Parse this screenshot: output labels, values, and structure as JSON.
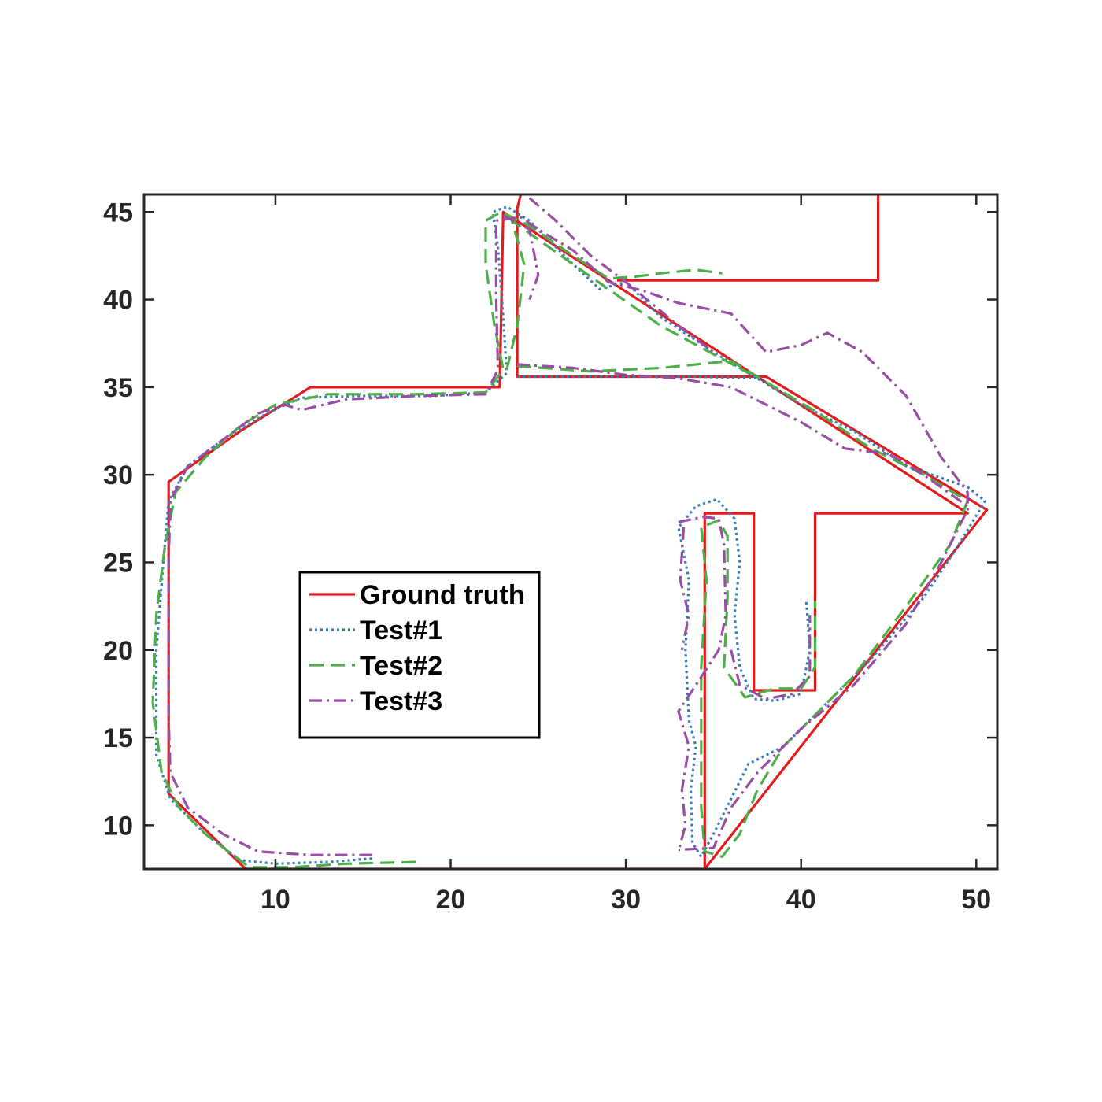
{
  "chart_data": {
    "type": "line",
    "title": "",
    "xlabel": "",
    "ylabel": "",
    "xlim": [
      2.5,
      51.2
    ],
    "ylim": [
      7.5,
      46
    ],
    "xticks": [
      10,
      20,
      30,
      40,
      50
    ],
    "yticks": [
      10,
      15,
      20,
      25,
      30,
      35,
      40,
      45
    ],
    "grid": false,
    "legend_position": "center-left",
    "series": [
      {
        "name": "Ground truth",
        "color": "#e41a1c",
        "style": "solid",
        "segments": [
          [
            [
              24,
              46
            ],
            [
              23.8,
              45.2
            ],
            [
              23.8,
              35.6
            ],
            [
              38,
              35.6
            ],
            [
              50.6,
              28
            ],
            [
              34.5,
              7.5
            ],
            [
              34.5,
              27.8
            ],
            [
              37.3,
              27.8
            ],
            [
              37.3,
              17.7
            ],
            [
              40.8,
              17.7
            ],
            [
              40.8,
              27.8
            ],
            [
              49.5,
              27.8
            ],
            [
              23,
              45
            ],
            [
              22.8,
              35
            ],
            [
              12,
              35
            ],
            [
              8,
              32.5
            ],
            [
              3.9,
              29.6
            ],
            [
              3.9,
              11.8
            ],
            [
              8.3,
              7.5
            ],
            [
              34.3,
              7.5
            ]
          ],
          [
            [
              29.5,
              41.1
            ],
            [
              44.4,
              41.1
            ],
            [
              44.4,
              46
            ]
          ]
        ]
      },
      {
        "name": "Test#1",
        "color": "#377eb8",
        "style": "dotted",
        "segments": [
          [
            [
              15.5,
              8.1
            ],
            [
              13,
              7.9
            ],
            [
              10,
              7.8
            ],
            [
              8,
              8
            ],
            [
              6,
              9.5
            ],
            [
              4,
              11.5
            ],
            [
              3.2,
              14
            ],
            [
              3.2,
              20
            ],
            [
              3.6,
              25
            ],
            [
              3.9,
              28.5
            ],
            [
              5,
              30.5
            ],
            [
              7,
              32
            ],
            [
              9.5,
              33.5
            ],
            [
              11.5,
              34.4
            ],
            [
              15,
              34.5
            ],
            [
              19,
              34.5
            ],
            [
              22,
              34.7
            ],
            [
              23.2,
              35.8
            ],
            [
              23,
              39
            ],
            [
              22.7,
              43
            ],
            [
              22.4,
              45
            ],
            [
              23.2,
              45.3
            ],
            [
              24.5,
              44.5
            ],
            [
              27,
              42
            ],
            [
              28.5,
              40.6
            ],
            [
              30,
              41
            ],
            [
              32,
              39
            ],
            [
              35,
              37
            ],
            [
              37.5,
              35.5
            ],
            [
              40,
              34
            ],
            [
              43,
              32.5
            ],
            [
              46,
              30.5
            ],
            [
              49.5,
              29.3
            ],
            [
              50.5,
              28.5
            ],
            [
              49,
              26
            ],
            [
              47,
              23
            ],
            [
              44,
              19.5
            ],
            [
              41,
              16.5
            ],
            [
              39,
              14.5
            ],
            [
              37,
              13.5
            ],
            [
              36,
              11.5
            ],
            [
              35,
              9.5
            ],
            [
              34.3,
              8.2
            ],
            [
              33.8,
              9
            ],
            [
              33.7,
              12
            ],
            [
              34,
              14.5
            ],
            [
              33.6,
              16
            ],
            [
              33.4,
              20
            ],
            [
              33.6,
              24
            ],
            [
              33,
              27
            ],
            [
              34,
              28.2
            ],
            [
              35.2,
              28.6
            ],
            [
              36.2,
              27.5
            ],
            [
              36.5,
              25
            ],
            [
              36.2,
              22
            ],
            [
              36.5,
              19
            ],
            [
              37.3,
              17.2
            ],
            [
              38.5,
              17.1
            ],
            [
              40,
              17.5
            ],
            [
              40.5,
              20
            ],
            [
              40.3,
              22.8
            ]
          ],
          [
            [
              23.8,
              35.6
            ],
            [
              30,
              35.6
            ],
            [
              34,
              35.6
            ],
            [
              37.8,
              35.5
            ]
          ]
        ]
      },
      {
        "name": "Test#2",
        "color": "#4daf4a",
        "style": "dashed",
        "segments": [
          [
            [
              18,
              7.9
            ],
            [
              14,
              7.8
            ],
            [
              11,
              7.6
            ],
            [
              8.5,
              7.6
            ],
            [
              6,
              9.5
            ],
            [
              4.5,
              11
            ],
            [
              3.5,
              13
            ],
            [
              3,
              17
            ],
            [
              3.2,
              22
            ],
            [
              3.7,
              26
            ],
            [
              4.3,
              29
            ],
            [
              6,
              31
            ],
            [
              8,
              32.8
            ],
            [
              10,
              34
            ],
            [
              13,
              34.6
            ],
            [
              18,
              34.6
            ],
            [
              22,
              34.7
            ],
            [
              23,
              36
            ],
            [
              22.5,
              38.5
            ],
            [
              22,
              42
            ],
            [
              22,
              44.5
            ],
            [
              22.9,
              45
            ],
            [
              24.5,
              44.2
            ],
            [
              27,
              42.5
            ],
            [
              29,
              41.2
            ],
            [
              30.5,
              41.3
            ],
            [
              32,
              41.5
            ],
            [
              34,
              41.7
            ],
            [
              35.5,
              41.5
            ]
          ],
          [
            [
              23.8,
              36.2
            ],
            [
              28,
              35.9
            ],
            [
              32,
              36.1
            ],
            [
              36,
              36.5
            ],
            [
              38,
              35.3
            ],
            [
              41,
              33.5
            ],
            [
              44,
              31.5
            ],
            [
              47,
              30
            ],
            [
              49.5,
              28.5
            ],
            [
              48.5,
              26
            ],
            [
              46,
              22.5
            ],
            [
              43,
              18.5
            ],
            [
              41,
              16.5
            ],
            [
              39,
              14.5
            ],
            [
              37.5,
              12
            ],
            [
              36.5,
              9.5
            ],
            [
              35.5,
              8.2
            ],
            [
              34.5,
              8.5
            ],
            [
              34.3,
              11
            ],
            [
              34.3,
              15
            ],
            [
              34.3,
              19
            ],
            [
              34.6,
              24
            ],
            [
              34.3,
              27
            ],
            [
              35.3,
              27.4
            ],
            [
              35.8,
              26.5
            ],
            [
              35.8,
              23
            ],
            [
              35.6,
              19
            ],
            [
              36.8,
              17.3
            ],
            [
              38.5,
              17.8
            ],
            [
              40,
              17.8
            ],
            [
              40.8,
              19
            ],
            [
              40.8,
              22.8
            ]
          ],
          [
            [
              23.2,
              36
            ],
            [
              23.8,
              38.5
            ],
            [
              24.2,
              42
            ],
            [
              23.5,
              44.5
            ],
            [
              27,
              42
            ],
            [
              32,
              38.5
            ],
            [
              37,
              35.8
            ]
          ]
        ]
      },
      {
        "name": "Test#3",
        "color": "#984ea3",
        "style": "dashdot",
        "segments": [
          [
            [
              15.5,
              8.3
            ],
            [
              12,
              8.3
            ],
            [
              9,
              8.5
            ],
            [
              7,
              9.5
            ],
            [
              5,
              11
            ],
            [
              4,
              13
            ],
            [
              3.9,
              16
            ],
            [
              3.9,
              20
            ],
            [
              3.9,
              25
            ],
            [
              4,
              28.5
            ],
            [
              5,
              30.5
            ],
            [
              7,
              32
            ],
            [
              9,
              33.5
            ],
            [
              10.5,
              34
            ],
            [
              11.5,
              33.7
            ],
            [
              14,
              34.3
            ],
            [
              18,
              34.5
            ],
            [
              22,
              34.6
            ],
            [
              22.7,
              36
            ],
            [
              22.6,
              40
            ],
            [
              22.6,
              44.5
            ],
            [
              24,
              44.7
            ],
            [
              25,
              44
            ],
            [
              27,
              42.8
            ],
            [
              29,
              41
            ],
            [
              31,
              40.5
            ],
            [
              33,
              39.8
            ],
            [
              34.5,
              39.5
            ],
            [
              36,
              39.2
            ],
            [
              38,
              37
            ],
            [
              40,
              37.4
            ],
            [
              41.5,
              38.1
            ],
            [
              43.5,
              37
            ],
            [
              46,
              34.5
            ],
            [
              48,
              31
            ],
            [
              49.5,
              29
            ],
            [
              49.5,
              28
            ],
            [
              48,
              25
            ],
            [
              46,
              21.5
            ],
            [
              43,
              18
            ],
            [
              40,
              15.5
            ],
            [
              37.5,
              13
            ],
            [
              36,
              11
            ],
            [
              35,
              8.7
            ],
            [
              33,
              8.6
            ]
          ],
          [
            [
              23,
              44.8
            ],
            [
              24.5,
              44
            ],
            [
              25,
              41.4
            ],
            [
              24.5,
              40
            ]
          ],
          [
            [
              24.5,
              45.8
            ],
            [
              26,
              44.5
            ],
            [
              28,
              42.5
            ],
            [
              30,
              41
            ],
            [
              33,
              38.5
            ],
            [
              35,
              37
            ]
          ],
          [
            [
              23.8,
              36.3
            ],
            [
              27,
              36.1
            ],
            [
              30,
              35.7
            ],
            [
              33,
              35.5
            ],
            [
              36,
              35
            ],
            [
              38,
              34
            ],
            [
              40,
              33
            ],
            [
              42.5,
              31.5
            ],
            [
              45,
              31.2
            ],
            [
              47,
              30
            ],
            [
              49.5,
              28.2
            ]
          ],
          [
            [
              33,
              27.3
            ],
            [
              34.4,
              27.6
            ],
            [
              35.3,
              27.5
            ],
            [
              35.6,
              26
            ],
            [
              35.7,
              22
            ],
            [
              35.3,
              20
            ],
            [
              34,
              18
            ],
            [
              33,
              16.5
            ],
            [
              33.6,
              14.5
            ],
            [
              33.2,
              12
            ],
            [
              33.4,
              10
            ],
            [
              33,
              8.5
            ]
          ],
          [
            [
              33.3,
              27
            ],
            [
              33.1,
              24
            ],
            [
              33.6,
              22
            ],
            [
              33.2,
              20
            ]
          ],
          [
            [
              36,
              20
            ],
            [
              36.5,
              18
            ],
            [
              38,
              17.2
            ],
            [
              39.5,
              17.5
            ],
            [
              40.5,
              18.5
            ],
            [
              40.5,
              22
            ]
          ]
        ]
      }
    ]
  }
}
